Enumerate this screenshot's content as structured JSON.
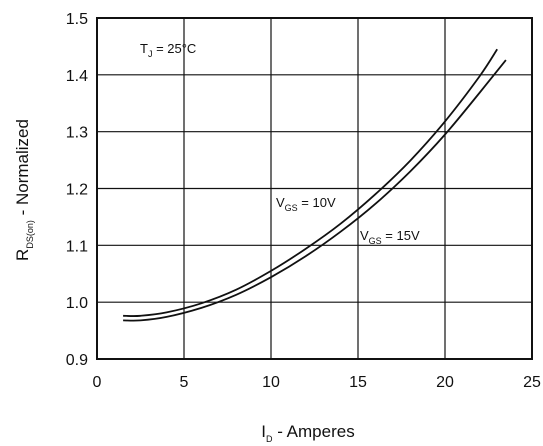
{
  "chart_data": {
    "type": "line",
    "xlabel": {
      "main": "I",
      "sub": "D",
      "rest": " - Amperes"
    },
    "ylabel": {
      "main": "R",
      "sub": "DS(on)",
      "rest": " - Normalized"
    },
    "xlim": [
      0,
      25
    ],
    "ylim": [
      0.9,
      1.5
    ],
    "xticks": [
      0,
      5,
      10,
      15,
      20,
      25
    ],
    "xtick_labels": [
      "0",
      "5",
      "10",
      "15",
      "20",
      "25"
    ],
    "yticks": [
      0.9,
      1.0,
      1.1,
      1.2,
      1.3,
      1.4,
      1.5
    ],
    "ytick_labels": [
      "0.9",
      "1.0",
      "1.1",
      "1.2",
      "1.3",
      "1.4",
      "1.5"
    ],
    "grid": true,
    "annotations": {
      "temp": {
        "main": "T",
        "sub": "J",
        "rest": " = 25°C"
      },
      "series1": {
        "main": "V",
        "sub": "GS",
        "rest": " = 10V"
      },
      "series2": {
        "main": "V",
        "sub": "GS",
        "rest": " = 15V"
      }
    },
    "series": [
      {
        "name": "VGS = 10V",
        "x": [
          1.5,
          2.5,
          4,
          6,
          8,
          10,
          12,
          14,
          16,
          18,
          20,
          22,
          23
        ],
        "y": [
          0.976,
          0.976,
          0.982,
          0.998,
          1.022,
          1.055,
          1.094,
          1.138,
          1.19,
          1.249,
          1.318,
          1.398,
          1.445
        ]
      },
      {
        "name": "VGS = 15V",
        "x": [
          1.5,
          2.5,
          4,
          6,
          8,
          10,
          12,
          14,
          16,
          18,
          20,
          22,
          23.5
        ],
        "y": [
          0.968,
          0.968,
          0.974,
          0.99,
          1.013,
          1.044,
          1.081,
          1.124,
          1.173,
          1.23,
          1.295,
          1.369,
          1.426
        ]
      }
    ]
  }
}
